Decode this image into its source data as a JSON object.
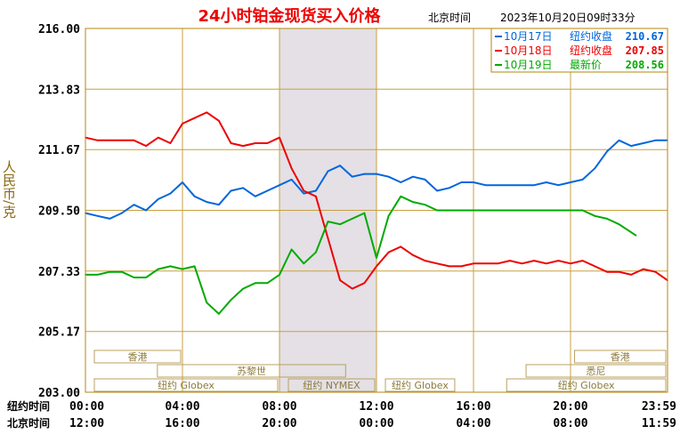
{
  "chart_data": {
    "type": "line",
    "title": "24小时铂金现货买入价格",
    "location_label": "北京时间",
    "timestamp": "2023年10月20日09时33分",
    "ylabel": "人民币/克",
    "ylim": [
      203.0,
      216.0
    ],
    "y_ticks": [
      "216.00",
      "213.83",
      "211.67",
      "209.50",
      "207.33",
      "205.17",
      "203.00"
    ],
    "x_row1_label": "纽约时间",
    "x_row2_label": "北京时间",
    "x_ticks_ny": [
      "00:00",
      "04:00",
      "08:00",
      "12:00",
      "16:00",
      "20:00",
      "23:59"
    ],
    "x_ticks_bj": [
      "12:00",
      "16:00",
      "20:00",
      "00:00",
      "04:00",
      "08:00",
      "11:59"
    ],
    "x_hours": [
      0,
      4,
      8,
      12,
      16,
      20,
      24
    ],
    "shaded_session": [
      8,
      12
    ],
    "grid": true,
    "legend_position": "top-right",
    "markets": [
      {
        "label": "香港",
        "start": 0.0,
        "end": 4.0,
        "row": 1
      },
      {
        "label": "苏黎世",
        "start": 2.6,
        "end": 10.8,
        "row": 2
      },
      {
        "label": "纽约 Globex",
        "start": 0.0,
        "end": 8.0,
        "row": 3
      },
      {
        "label": "纽约 NYMEX",
        "start": 8.0,
        "end": 12.0,
        "row": 3
      },
      {
        "label": "纽约 Globex",
        "start": 12.0,
        "end": 15.3,
        "row": 3
      },
      {
        "label": "香港",
        "start": 19.8,
        "end": 24.0,
        "row": 1
      },
      {
        "label": "悉尼",
        "start": 17.8,
        "end": 24.0,
        "row": 2
      },
      {
        "label": "纽约 Globex",
        "start": 17.0,
        "end": 24.0,
        "row": 3
      }
    ],
    "series": [
      {
        "name": "10月17日",
        "price_label": "纽约收盘",
        "price": "210.67",
        "color": "#0066dd",
        "x": [
          0,
          0.5,
          1,
          1.5,
          2,
          2.5,
          3,
          3.5,
          4,
          4.5,
          5,
          5.5,
          6,
          6.5,
          7,
          7.5,
          8,
          8.5,
          9,
          9.5,
          10,
          10.5,
          11,
          11.5,
          12,
          12.5,
          13,
          13.5,
          14,
          14.5,
          15,
          15.5,
          16,
          16.5,
          17,
          17.5,
          18,
          18.5,
          19,
          19.5,
          20,
          20.5,
          21,
          21.5,
          22,
          22.5,
          23,
          23.5,
          24
        ],
        "y": [
          209.4,
          209.3,
          209.2,
          209.4,
          209.7,
          209.5,
          209.9,
          210.1,
          210.5,
          210.0,
          209.8,
          209.7,
          210.2,
          210.3,
          210.0,
          210.2,
          210.4,
          210.6,
          210.1,
          210.2,
          210.9,
          211.1,
          210.7,
          210.8,
          210.8,
          210.7,
          210.5,
          210.7,
          210.6,
          210.2,
          210.3,
          210.5,
          210.5,
          210.4,
          210.4,
          210.4,
          210.4,
          210.4,
          210.5,
          210.4,
          210.5,
          210.6,
          211.0,
          211.6,
          212.0,
          211.8,
          211.9,
          212.0,
          212.0
        ]
      },
      {
        "name": "10月18日",
        "price_label": "纽约收盘",
        "price": "207.85",
        "color": "#ee0000",
        "x": [
          0,
          0.5,
          1,
          1.5,
          2,
          2.5,
          3,
          3.5,
          4,
          4.5,
          5,
          5.5,
          6,
          6.5,
          7,
          7.5,
          8,
          8.5,
          9,
          9.5,
          10,
          10.5,
          11,
          11.5,
          12,
          12.5,
          13,
          13.5,
          14,
          14.5,
          15,
          15.5,
          16,
          16.5,
          17,
          17.5,
          18,
          18.5,
          19,
          19.5,
          20,
          20.5,
          21,
          21.5,
          22,
          22.5,
          23,
          23.5,
          24
        ],
        "y": [
          212.1,
          212.0,
          212.0,
          212.0,
          212.0,
          211.8,
          212.1,
          211.9,
          212.6,
          212.8,
          213.0,
          212.7,
          211.9,
          211.8,
          211.9,
          211.9,
          212.1,
          211.0,
          210.2,
          210.0,
          208.5,
          207.0,
          206.7,
          206.9,
          207.5,
          208.0,
          208.2,
          207.9,
          207.7,
          207.6,
          207.5,
          207.5,
          207.6,
          207.6,
          207.6,
          207.7,
          207.6,
          207.7,
          207.6,
          207.7,
          207.6,
          207.7,
          207.5,
          207.3,
          207.3,
          207.2,
          207.4,
          207.3,
          207.0
        ]
      },
      {
        "name": "10月19日",
        "price_label": "最新价",
        "price": "208.56",
        "color": "#00aa00",
        "x": [
          0,
          0.5,
          1,
          1.5,
          2,
          2.5,
          3,
          3.5,
          4,
          4.5,
          5,
          5.5,
          6,
          6.5,
          7,
          7.5,
          8,
          8.5,
          9,
          9.5,
          10,
          10.5,
          11,
          11.5,
          12,
          12.5,
          13,
          13.5,
          14,
          14.5,
          15,
          15.5,
          16,
          16.5,
          17,
          17.5,
          18,
          18.5,
          19,
          19.5,
          20,
          20.5,
          21,
          21.5,
          22,
          22.7
        ],
        "y": [
          207.2,
          207.2,
          207.3,
          207.3,
          207.1,
          207.1,
          207.4,
          207.5,
          207.4,
          207.5,
          206.2,
          205.8,
          206.3,
          206.7,
          206.9,
          206.9,
          207.2,
          208.1,
          207.6,
          208.0,
          209.1,
          209.0,
          209.2,
          209.4,
          207.8,
          209.3,
          210.0,
          209.8,
          209.7,
          209.5,
          209.5,
          209.5,
          209.5,
          209.5,
          209.5,
          209.5,
          209.5,
          209.5,
          209.5,
          209.5,
          209.5,
          209.5,
          209.3,
          209.2,
          209.0,
          208.6
        ]
      }
    ]
  }
}
